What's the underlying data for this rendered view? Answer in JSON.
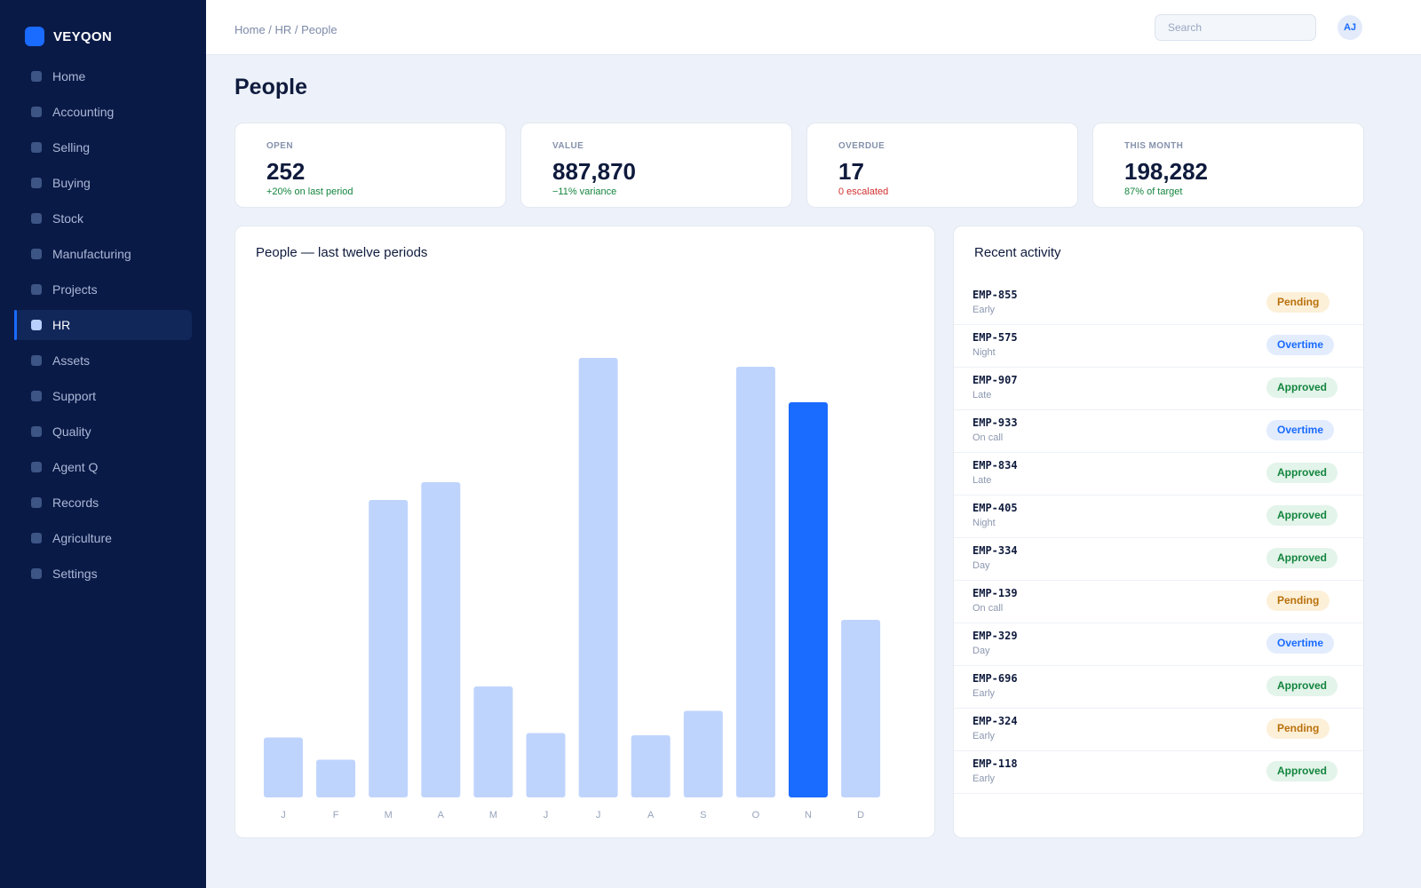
{
  "app": {
    "brand": "VEYQON"
  },
  "sidebar": {
    "items": [
      {
        "label": "Home",
        "active": false
      },
      {
        "label": "Accounting",
        "active": false
      },
      {
        "label": "Selling",
        "active": false
      },
      {
        "label": "Buying",
        "active": false
      },
      {
        "label": "Stock",
        "active": false
      },
      {
        "label": "Manufacturing",
        "active": false
      },
      {
        "label": "Projects",
        "active": false
      },
      {
        "label": "HR",
        "active": true
      },
      {
        "label": "Assets",
        "active": false
      },
      {
        "label": "Support",
        "active": false
      },
      {
        "label": "Quality",
        "active": false
      },
      {
        "label": "Agent Q",
        "active": false
      },
      {
        "label": "Records",
        "active": false
      },
      {
        "label": "Agriculture",
        "active": false
      },
      {
        "label": "Settings",
        "active": false
      }
    ]
  },
  "header": {
    "breadcrumb": "Home / HR / People",
    "search": {
      "placeholder": "Search",
      "value": ""
    },
    "avatar_initials": "AJ"
  },
  "page": {
    "title": "People"
  },
  "kpis": [
    {
      "label": "OPEN",
      "value": "252",
      "delta": "+20% on last period",
      "tone": "positive"
    },
    {
      "label": "VALUE",
      "value": "887,870",
      "delta": "−11% variance",
      "tone": "positive"
    },
    {
      "label": "OVERDUE",
      "value": "17",
      "delta": "0 escalated",
      "tone": "negative"
    },
    {
      "label": "THIS MONTH",
      "value": "198,282",
      "delta": "87% of target",
      "tone": "positive"
    }
  ],
  "chart_panel": {
    "title": "People — last twelve periods"
  },
  "chart_data": {
    "type": "bar",
    "categories": [
      "J",
      "F",
      "M",
      "A",
      "M",
      "J",
      "J",
      "A",
      "S",
      "O",
      "N",
      "D"
    ],
    "values": [
      13.5,
      8.5,
      67,
      71,
      25,
      14.5,
      99,
      14,
      19.5,
      97,
      89,
      40
    ],
    "highlight_index": 10,
    "colors": {
      "bar": "#bfd4fd",
      "highlight": "#1a6bff"
    },
    "ylim": [
      0,
      100
    ],
    "grid": false
  },
  "activity": {
    "title": "Recent activity",
    "items": [
      {
        "id": "EMP-855",
        "shift": "Early",
        "status": "Pending"
      },
      {
        "id": "EMP-575",
        "shift": "Night",
        "status": "Overtime"
      },
      {
        "id": "EMP-907",
        "shift": "Late",
        "status": "Approved"
      },
      {
        "id": "EMP-933",
        "shift": "On call",
        "status": "Overtime"
      },
      {
        "id": "EMP-834",
        "shift": "Late",
        "status": "Approved"
      },
      {
        "id": "EMP-405",
        "shift": "Night",
        "status": "Approved"
      },
      {
        "id": "EMP-334",
        "shift": "Day",
        "status": "Approved"
      },
      {
        "id": "EMP-139",
        "shift": "On call",
        "status": "Pending"
      },
      {
        "id": "EMP-329",
        "shift": "Day",
        "status": "Overtime"
      },
      {
        "id": "EMP-696",
        "shift": "Early",
        "status": "Approved"
      },
      {
        "id": "EMP-324",
        "shift": "Early",
        "status": "Pending"
      },
      {
        "id": "EMP-118",
        "shift": "Early",
        "status": "Approved"
      }
    ]
  }
}
